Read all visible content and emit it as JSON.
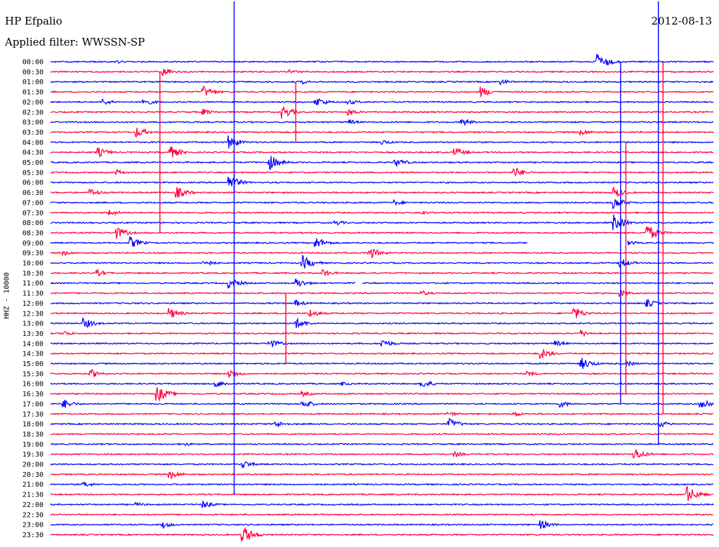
{
  "header": {
    "station": "HP Efpalio",
    "filter": "Applied filter: WWSSN-SP",
    "date": "2012-08-13"
  },
  "chart_data": {
    "type": "line",
    "title": "HP Efpalio",
    "subtitle": "Applied filter: WWSSN-SP",
    "ylabel": "HHZ - 10000",
    "xlabel": "",
    "grid": false,
    "colors": {
      "even_rows": "#0000ff",
      "odd_rows": "#ff0040"
    },
    "x_minutes": [
      0,
      30
    ],
    "time_labels": [
      "00:00",
      "00:30",
      "01:00",
      "01:30",
      "02:00",
      "02:30",
      "03:00",
      "03:30",
      "04:00",
      "04:30",
      "05:00",
      "05:30",
      "06:00",
      "06:30",
      "07:00",
      "07:30",
      "08:00",
      "08:30",
      "09:00",
      "09:30",
      "10:00",
      "10:30",
      "11:00",
      "11:30",
      "12:00",
      "12:30",
      "13:00",
      "13:30",
      "14:00",
      "14:30",
      "15:00",
      "15:30",
      "16:00",
      "16:30",
      "17:00",
      "17:30",
      "18:00",
      "18:30",
      "19:00",
      "19:30",
      "20:00",
      "20:30",
      "21:00",
      "21:30",
      "22:00",
      "22:30",
      "23:00",
      "23:30"
    ],
    "events": [
      {
        "row": 0,
        "t": 0.825,
        "a": 14
      },
      {
        "row": 0,
        "t": 0.1,
        "a": 3
      },
      {
        "row": 1,
        "t": 0.17,
        "a": 6
      },
      {
        "row": 1,
        "t": 0.36,
        "a": 4
      },
      {
        "row": 2,
        "t": 0.68,
        "a": 4
      },
      {
        "row": 2,
        "t": 0.38,
        "a": 3
      },
      {
        "row": 3,
        "t": 0.23,
        "a": 9
      },
      {
        "row": 3,
        "t": 0.65,
        "a": 8
      },
      {
        "row": 4,
        "t": 0.4,
        "a": 8
      },
      {
        "row": 4,
        "t": 0.08,
        "a": 5
      },
      {
        "row": 4,
        "t": 0.14,
        "a": 6
      },
      {
        "row": 4,
        "t": 0.45,
        "a": 4
      },
      {
        "row": 5,
        "t": 0.35,
        "a": 10
      },
      {
        "row": 5,
        "t": 0.23,
        "a": 5
      },
      {
        "row": 5,
        "t": 0.45,
        "a": 5
      },
      {
        "row": 6,
        "t": 0.62,
        "a": 6
      },
      {
        "row": 6,
        "t": 0.45,
        "a": 4
      },
      {
        "row": 7,
        "t": 0.13,
        "a": 8
      },
      {
        "row": 7,
        "t": 0.8,
        "a": 5
      },
      {
        "row": 8,
        "t": 0.27,
        "a": 10
      },
      {
        "row": 8,
        "t": 0.5,
        "a": 4
      },
      {
        "row": 9,
        "t": 0.07,
        "a": 8
      },
      {
        "row": 9,
        "t": 0.18,
        "a": 10
      },
      {
        "row": 9,
        "t": 0.61,
        "a": 7
      },
      {
        "row": 10,
        "t": 0.33,
        "a": 12
      },
      {
        "row": 10,
        "t": 0.52,
        "a": 7
      },
      {
        "row": 11,
        "t": 0.7,
        "a": 8
      },
      {
        "row": 11,
        "t": 0.1,
        "a": 4
      },
      {
        "row": 12,
        "t": 0.27,
        "a": 11
      },
      {
        "row": 13,
        "t": 0.06,
        "a": 6
      },
      {
        "row": 13,
        "t": 0.19,
        "a": 9
      },
      {
        "row": 13,
        "t": 0.85,
        "a": 8
      },
      {
        "row": 14,
        "t": 0.85,
        "a": 9
      },
      {
        "row": 14,
        "t": 0.52,
        "a": 4
      },
      {
        "row": 15,
        "t": 0.09,
        "a": 5
      },
      {
        "row": 15,
        "t": 0.56,
        "a": 3
      },
      {
        "row": 16,
        "t": 0.85,
        "a": 12
      },
      {
        "row": 16,
        "t": 0.43,
        "a": 4
      },
      {
        "row": 17,
        "t": 0.1,
        "a": 9
      },
      {
        "row": 17,
        "t": 0.9,
        "a": 13
      },
      {
        "row": 18,
        "t": 0.12,
        "a": 9
      },
      {
        "row": 18,
        "t": 0.4,
        "a": 9
      },
      {
        "row": 18,
        "t": 0.86,
        "a": 8
      },
      {
        "row": 19,
        "t": 0.48,
        "a": 10
      },
      {
        "row": 19,
        "t": 0.02,
        "a": 4
      },
      {
        "row": 20,
        "t": 0.38,
        "a": 11
      },
      {
        "row": 20,
        "t": 0.23,
        "a": 6
      },
      {
        "row": 20,
        "t": 0.86,
        "a": 7
      },
      {
        "row": 21,
        "t": 0.07,
        "a": 5
      },
      {
        "row": 21,
        "t": 0.41,
        "a": 6
      },
      {
        "row": 22,
        "t": 0.27,
        "a": 8
      },
      {
        "row": 22,
        "t": 0.37,
        "a": 8
      },
      {
        "row": 23,
        "t": 0.56,
        "a": 4
      },
      {
        "row": 23,
        "t": 0.86,
        "a": 5
      },
      {
        "row": 24,
        "t": 0.9,
        "a": 6
      },
      {
        "row": 24,
        "t": 0.37,
        "a": 5
      },
      {
        "row": 25,
        "t": 0.18,
        "a": 8
      },
      {
        "row": 25,
        "t": 0.39,
        "a": 7
      },
      {
        "row": 25,
        "t": 0.79,
        "a": 9
      },
      {
        "row": 26,
        "t": 0.05,
        "a": 8
      },
      {
        "row": 26,
        "t": 0.37,
        "a": 8
      },
      {
        "row": 27,
        "t": 0.02,
        "a": 4
      },
      {
        "row": 27,
        "t": 0.8,
        "a": 5
      },
      {
        "row": 28,
        "t": 0.33,
        "a": 7
      },
      {
        "row": 28,
        "t": 0.5,
        "a": 7
      },
      {
        "row": 28,
        "t": 0.76,
        "a": 5
      },
      {
        "row": 29,
        "t": 0.74,
        "a": 8
      },
      {
        "row": 30,
        "t": 0.8,
        "a": 10
      },
      {
        "row": 30,
        "t": 0.87,
        "a": 4
      },
      {
        "row": 31,
        "t": 0.06,
        "a": 7
      },
      {
        "row": 31,
        "t": 0.27,
        "a": 7
      },
      {
        "row": 31,
        "t": 0.72,
        "a": 4
      },
      {
        "row": 32,
        "t": 0.25,
        "a": 6
      },
      {
        "row": 32,
        "t": 0.56,
        "a": 7
      },
      {
        "row": 32,
        "t": 0.44,
        "a": 3
      },
      {
        "row": 33,
        "t": 0.16,
        "a": 13
      },
      {
        "row": 33,
        "t": 0.38,
        "a": 4
      },
      {
        "row": 34,
        "t": 0.02,
        "a": 7
      },
      {
        "row": 34,
        "t": 0.38,
        "a": 7
      },
      {
        "row": 34,
        "t": 0.77,
        "a": 5
      },
      {
        "row": 34,
        "t": 0.98,
        "a": 11
      },
      {
        "row": 35,
        "t": 0.6,
        "a": 4
      },
      {
        "row": 35,
        "t": 0.7,
        "a": 4
      },
      {
        "row": 36,
        "t": 0.34,
        "a": 5
      },
      {
        "row": 36,
        "t": 0.6,
        "a": 9
      },
      {
        "row": 36,
        "t": 0.92,
        "a": 5
      },
      {
        "row": 38,
        "t": 0.2,
        "a": 3
      },
      {
        "row": 39,
        "t": 0.88,
        "a": 10
      },
      {
        "row": 39,
        "t": 0.61,
        "a": 4
      },
      {
        "row": 40,
        "t": 0.29,
        "a": 6
      },
      {
        "row": 41,
        "t": 0.18,
        "a": 7
      },
      {
        "row": 42,
        "t": 0.05,
        "a": 5
      },
      {
        "row": 43,
        "t": 0.96,
        "a": 13
      },
      {
        "row": 44,
        "t": 0.13,
        "a": 3
      },
      {
        "row": 44,
        "t": 0.23,
        "a": 6
      },
      {
        "row": 46,
        "t": 0.17,
        "a": 5
      },
      {
        "row": 46,
        "t": 0.74,
        "a": 7
      },
      {
        "row": 47,
        "t": 0.29,
        "a": 14
      }
    ],
    "spikes": [
      {
        "t": 0.277,
        "row_from": -6,
        "row_to": 43
      },
      {
        "t": 0.277,
        "row_from": 11,
        "row_to": 13
      },
      {
        "t": 0.86,
        "row_from": 0,
        "row_to": 34
      },
      {
        "t": 0.868,
        "row_from": 8,
        "row_to": 33
      },
      {
        "t": 0.917,
        "row_from": -6,
        "row_to": 38
      },
      {
        "t": 0.924,
        "row_from": 0,
        "row_to": 35
      },
      {
        "t": 0.165,
        "row_from": 1,
        "row_to": 17
      },
      {
        "t": 0.37,
        "row_from": 2,
        "row_to": 8
      },
      {
        "t": 0.355,
        "row_from": 23,
        "row_to": 30
      }
    ],
    "gaps": [
      {
        "row": 18,
        "t_from": 0.72,
        "t_to": 0.87
      },
      {
        "row": 22,
        "t_from": 0.46,
        "t_to": 0.47
      }
    ]
  }
}
